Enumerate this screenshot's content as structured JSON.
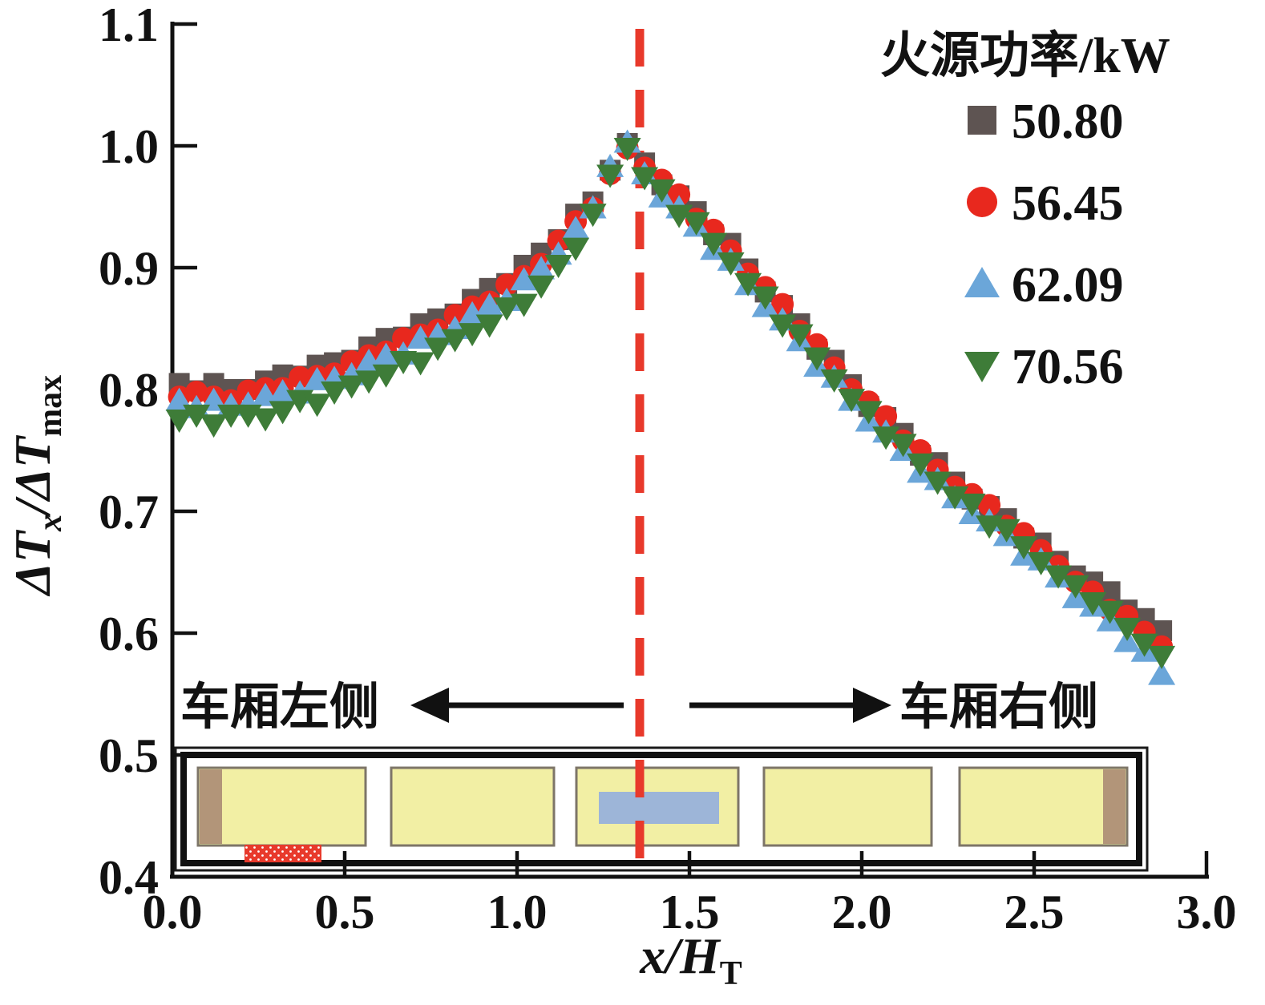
{
  "figure": {
    "background": "#ffffff",
    "y_axis": {
      "label": {
        "main1": "ΔT",
        "sub1": "x",
        "main2": "/ΔT",
        "sub2": "max"
      },
      "ticks": [
        "1.1",
        "1.0",
        "0.9",
        "0.8",
        "0.7",
        "0.6",
        "0.5",
        "0.4"
      ]
    },
    "x_axis": {
      "label": {
        "main": "x/H",
        "sub": "T"
      },
      "ticks": [
        "0.0",
        "0.5",
        "1.0",
        "1.5",
        "2.0",
        "2.5",
        "3.0"
      ]
    },
    "legend": {
      "title": "火源功率/kW",
      "items": [
        {
          "label": "50.80",
          "marker": "square",
          "color": "#5e5452"
        },
        {
          "label": "56.45",
          "marker": "circle",
          "color": "#e8281e"
        },
        {
          "label": "62.09",
          "marker": "triangle-up",
          "color": "#6ba6d9"
        },
        {
          "label": "70.56",
          "marker": "triangle-down",
          "color": "#3e7c38"
        }
      ]
    },
    "annotations": {
      "left": "车厢左侧",
      "right": "车厢右侧"
    },
    "divider": {
      "color": "#e8392b"
    },
    "carriage": {
      "window_fill": "#f2efa4",
      "window_border": "#7d7568",
      "door_fill": "#b29579",
      "seat_fill": "#9db5d8",
      "fire_fill": "#e83a2c",
      "frame_color": "#1a1a1a"
    }
  },
  "chart_data": {
    "type": "scatter",
    "title": "",
    "xlabel": "x/H_T",
    "ylabel": "ΔT_x/ΔT_max",
    "xlim": [
      0.0,
      3.0
    ],
    "ylim": [
      0.4,
      1.1
    ],
    "grid": false,
    "legend_title": "火源功率/kW",
    "legend_position": "top-right",
    "divider_x": 1.355,
    "x": [
      0.02,
      0.07,
      0.12,
      0.17,
      0.22,
      0.27,
      0.32,
      0.37,
      0.42,
      0.47,
      0.52,
      0.57,
      0.62,
      0.67,
      0.72,
      0.77,
      0.82,
      0.87,
      0.92,
      0.97,
      1.02,
      1.07,
      1.12,
      1.17,
      1.22,
      1.27,
      1.32,
      1.37,
      1.42,
      1.47,
      1.52,
      1.57,
      1.62,
      1.67,
      1.72,
      1.77,
      1.82,
      1.87,
      1.92,
      1.97,
      2.02,
      2.07,
      2.12,
      2.17,
      2.22,
      2.27,
      2.32,
      2.37,
      2.42,
      2.47,
      2.52,
      2.57,
      2.62,
      2.67,
      2.72,
      2.77,
      2.82,
      2.87
    ],
    "series": [
      {
        "name": "50.80",
        "marker": "square",
        "color": "#5e5452",
        "y": [
          0.805,
          0.799,
          0.805,
          0.8,
          0.8,
          0.807,
          0.812,
          0.811,
          0.82,
          0.822,
          0.824,
          0.835,
          0.842,
          0.843,
          0.854,
          0.858,
          0.862,
          0.874,
          0.883,
          0.887,
          0.902,
          0.912,
          0.923,
          0.944,
          0.954,
          0.98,
          1.002,
          0.986,
          0.968,
          0.959,
          0.946,
          0.927,
          0.92,
          0.899,
          0.88,
          0.869,
          0.854,
          0.833,
          0.824,
          0.804,
          0.786,
          0.777,
          0.764,
          0.746,
          0.74,
          0.724,
          0.71,
          0.704,
          0.694,
          0.678,
          0.674,
          0.659,
          0.647,
          0.642,
          0.634,
          0.619,
          0.612,
          0.602
        ]
      },
      {
        "name": "56.45",
        "marker": "circle",
        "color": "#e8281e",
        "y": [
          0.794,
          0.798,
          0.794,
          0.791,
          0.799,
          0.801,
          0.801,
          0.81,
          0.811,
          0.813,
          0.823,
          0.828,
          0.831,
          0.842,
          0.845,
          0.849,
          0.861,
          0.868,
          0.872,
          0.886,
          0.893,
          0.903,
          0.922,
          0.938,
          0.949,
          0.977,
          0.998,
          0.982,
          0.972,
          0.96,
          0.94,
          0.931,
          0.914,
          0.895,
          0.884,
          0.87,
          0.848,
          0.837,
          0.818,
          0.8,
          0.79,
          0.778,
          0.758,
          0.75,
          0.734,
          0.72,
          0.714,
          0.705,
          0.688,
          0.682,
          0.668,
          0.655,
          0.642,
          0.634,
          0.619,
          0.614,
          0.601,
          0.589
        ]
      },
      {
        "name": "62.09",
        "marker": "triangle-up",
        "color": "#6ba6d9",
        "y": [
          0.791,
          0.785,
          0.791,
          0.787,
          0.788,
          0.795,
          0.798,
          0.797,
          0.808,
          0.809,
          0.812,
          0.823,
          0.828,
          0.829,
          0.842,
          0.845,
          0.85,
          0.862,
          0.869,
          0.873,
          0.89,
          0.899,
          0.911,
          0.932,
          0.949,
          0.983,
          1.003,
          0.977,
          0.958,
          0.949,
          0.934,
          0.915,
          0.906,
          0.886,
          0.868,
          0.857,
          0.84,
          0.819,
          0.81,
          0.791,
          0.774,
          0.765,
          0.75,
          0.732,
          0.726,
          0.711,
          0.698,
          0.692,
          0.68,
          0.664,
          0.66,
          0.646,
          0.629,
          0.622,
          0.61,
          0.593,
          0.585,
          0.566
        ]
      },
      {
        "name": "70.56",
        "marker": "triangle-down",
        "color": "#3e7c38",
        "y": [
          0.775,
          0.779,
          0.771,
          0.779,
          0.779,
          0.776,
          0.782,
          0.791,
          0.788,
          0.798,
          0.803,
          0.807,
          0.812,
          0.823,
          0.822,
          0.834,
          0.841,
          0.846,
          0.853,
          0.867,
          0.87,
          0.885,
          0.902,
          0.916,
          0.944,
          0.976,
          0.998,
          0.974,
          0.964,
          0.943,
          0.937,
          0.92,
          0.904,
          0.887,
          0.876,
          0.853,
          0.845,
          0.826,
          0.808,
          0.792,
          0.782,
          0.761,
          0.755,
          0.739,
          0.724,
          0.712,
          0.706,
          0.688,
          0.685,
          0.671,
          0.658,
          0.647,
          0.639,
          0.625,
          0.618,
          0.604,
          0.591,
          0.581
        ]
      }
    ]
  }
}
